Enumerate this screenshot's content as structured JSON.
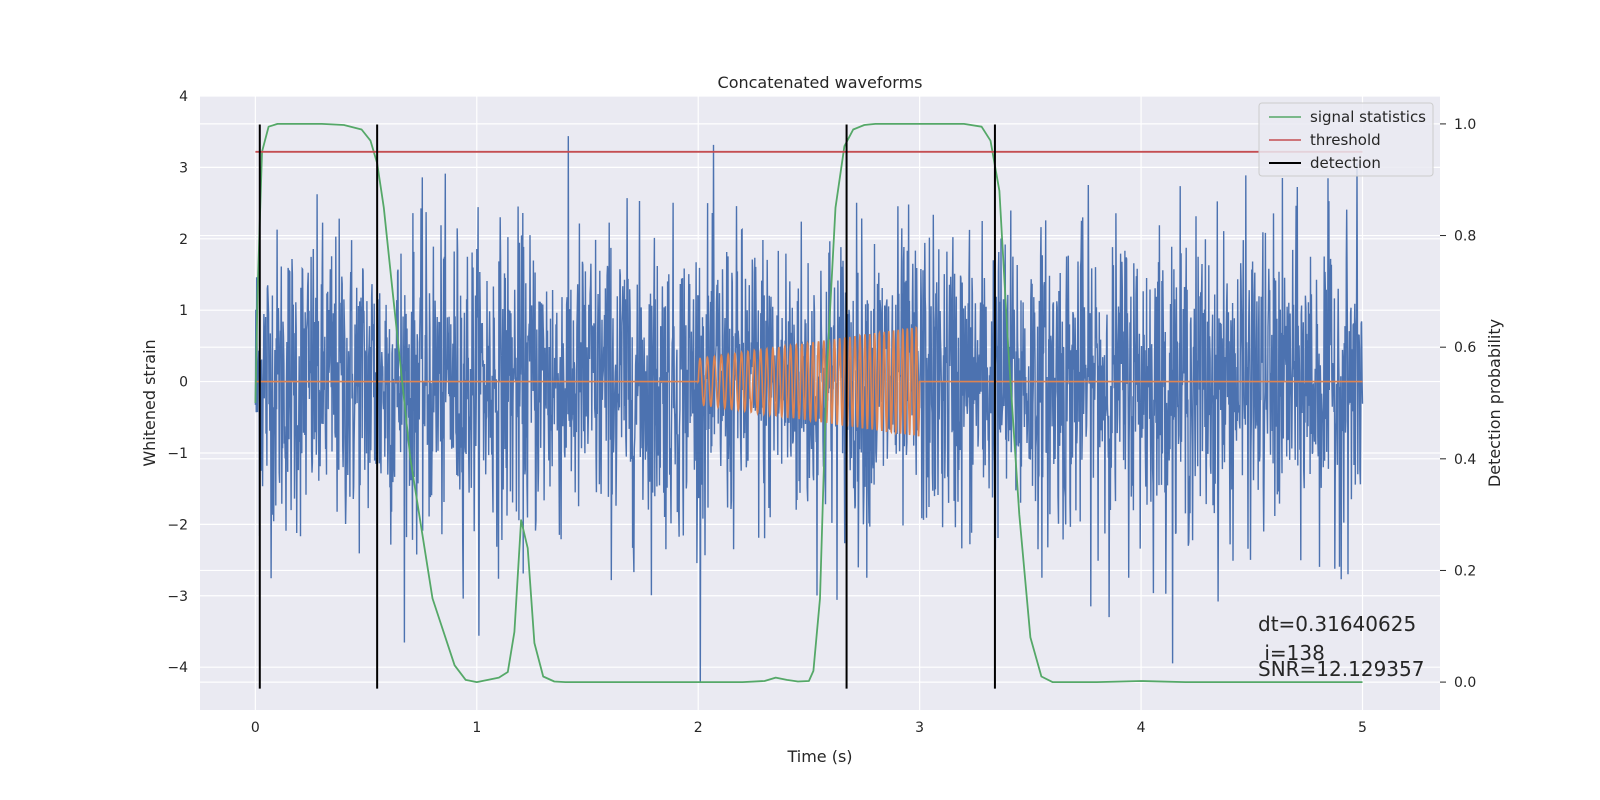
{
  "chart_data": {
    "type": "line",
    "title": "Concatenated waveforms",
    "xlabel": "Time (s)",
    "ylabel": "Whitened strain",
    "y2label": "Detection probability",
    "xlim": [
      -0.25,
      5.35
    ],
    "ylim": [
      -4.6,
      4.0
    ],
    "y2lim": [
      -0.05,
      1.05
    ],
    "x_ticks": [
      "0",
      "1",
      "2",
      "3",
      "4",
      "5"
    ],
    "y_ticks": [
      "4",
      "3",
      "2",
      "1",
      "0",
      "−1",
      "−2",
      "−3",
      "−4"
    ],
    "y2_ticks": [
      "1.0",
      "0.8",
      "0.6",
      "0.4",
      "0.2",
      "0.0"
    ],
    "grid": true,
    "legend_position": "top-right",
    "legend": [
      "signal statistics",
      "threshold",
      "detection"
    ],
    "colors": {
      "noise": "#4c72b0",
      "template": "#dd8452",
      "statistic": "#55a868",
      "threshold": "#c44e52",
      "detection": "#000000",
      "background": "#eaeaf2"
    },
    "series": [
      {
        "name": "signal statistics",
        "axis": "right",
        "x": [
          0.0,
          0.01,
          0.03,
          0.06,
          0.1,
          0.2,
          0.3,
          0.4,
          0.48,
          0.52,
          0.55,
          0.58,
          0.62,
          0.7,
          0.8,
          0.9,
          0.95,
          1.0,
          1.05,
          1.1,
          1.14,
          1.17,
          1.2,
          1.23,
          1.26,
          1.3,
          1.35,
          1.4,
          1.6,
          1.8,
          2.0,
          2.2,
          2.3,
          2.35,
          2.4,
          2.45,
          2.5,
          2.52,
          2.55,
          2.58,
          2.62,
          2.66,
          2.7,
          2.75,
          2.8,
          3.0,
          3.2,
          3.28,
          3.32,
          3.36,
          3.4,
          3.45,
          3.5,
          3.55,
          3.6,
          3.8,
          4.0,
          4.2,
          4.5,
          5.0
        ],
        "values": [
          0.5,
          0.7,
          0.95,
          0.995,
          1.0,
          1.0,
          1.0,
          0.998,
          0.99,
          0.97,
          0.93,
          0.85,
          0.7,
          0.4,
          0.15,
          0.03,
          0.004,
          0.0,
          0.004,
          0.008,
          0.018,
          0.09,
          0.29,
          0.24,
          0.07,
          0.01,
          0.001,
          0.0,
          0.0,
          0.0,
          0.0,
          0.0,
          0.002,
          0.008,
          0.004,
          0.001,
          0.002,
          0.02,
          0.15,
          0.55,
          0.85,
          0.96,
          0.99,
          0.998,
          1.0,
          1.0,
          1.0,
          0.995,
          0.97,
          0.88,
          0.6,
          0.3,
          0.08,
          0.01,
          0.0,
          0.0,
          0.002,
          0.0,
          0.0,
          0.0
        ]
      },
      {
        "name": "threshold",
        "axis": "right",
        "x": [
          0.0,
          5.0
        ],
        "values": [
          0.95,
          0.95
        ]
      },
      {
        "name": "detection",
        "type": "vlines",
        "x": [
          0.02,
          0.55,
          2.67,
          3.34
        ],
        "y_range": [
          -4.3,
          3.6
        ]
      }
    ]
  },
  "annotations": {
    "line1": "dt=0.31640625",
    "line2": " i=138",
    "line3": "SNR=12.129357"
  }
}
